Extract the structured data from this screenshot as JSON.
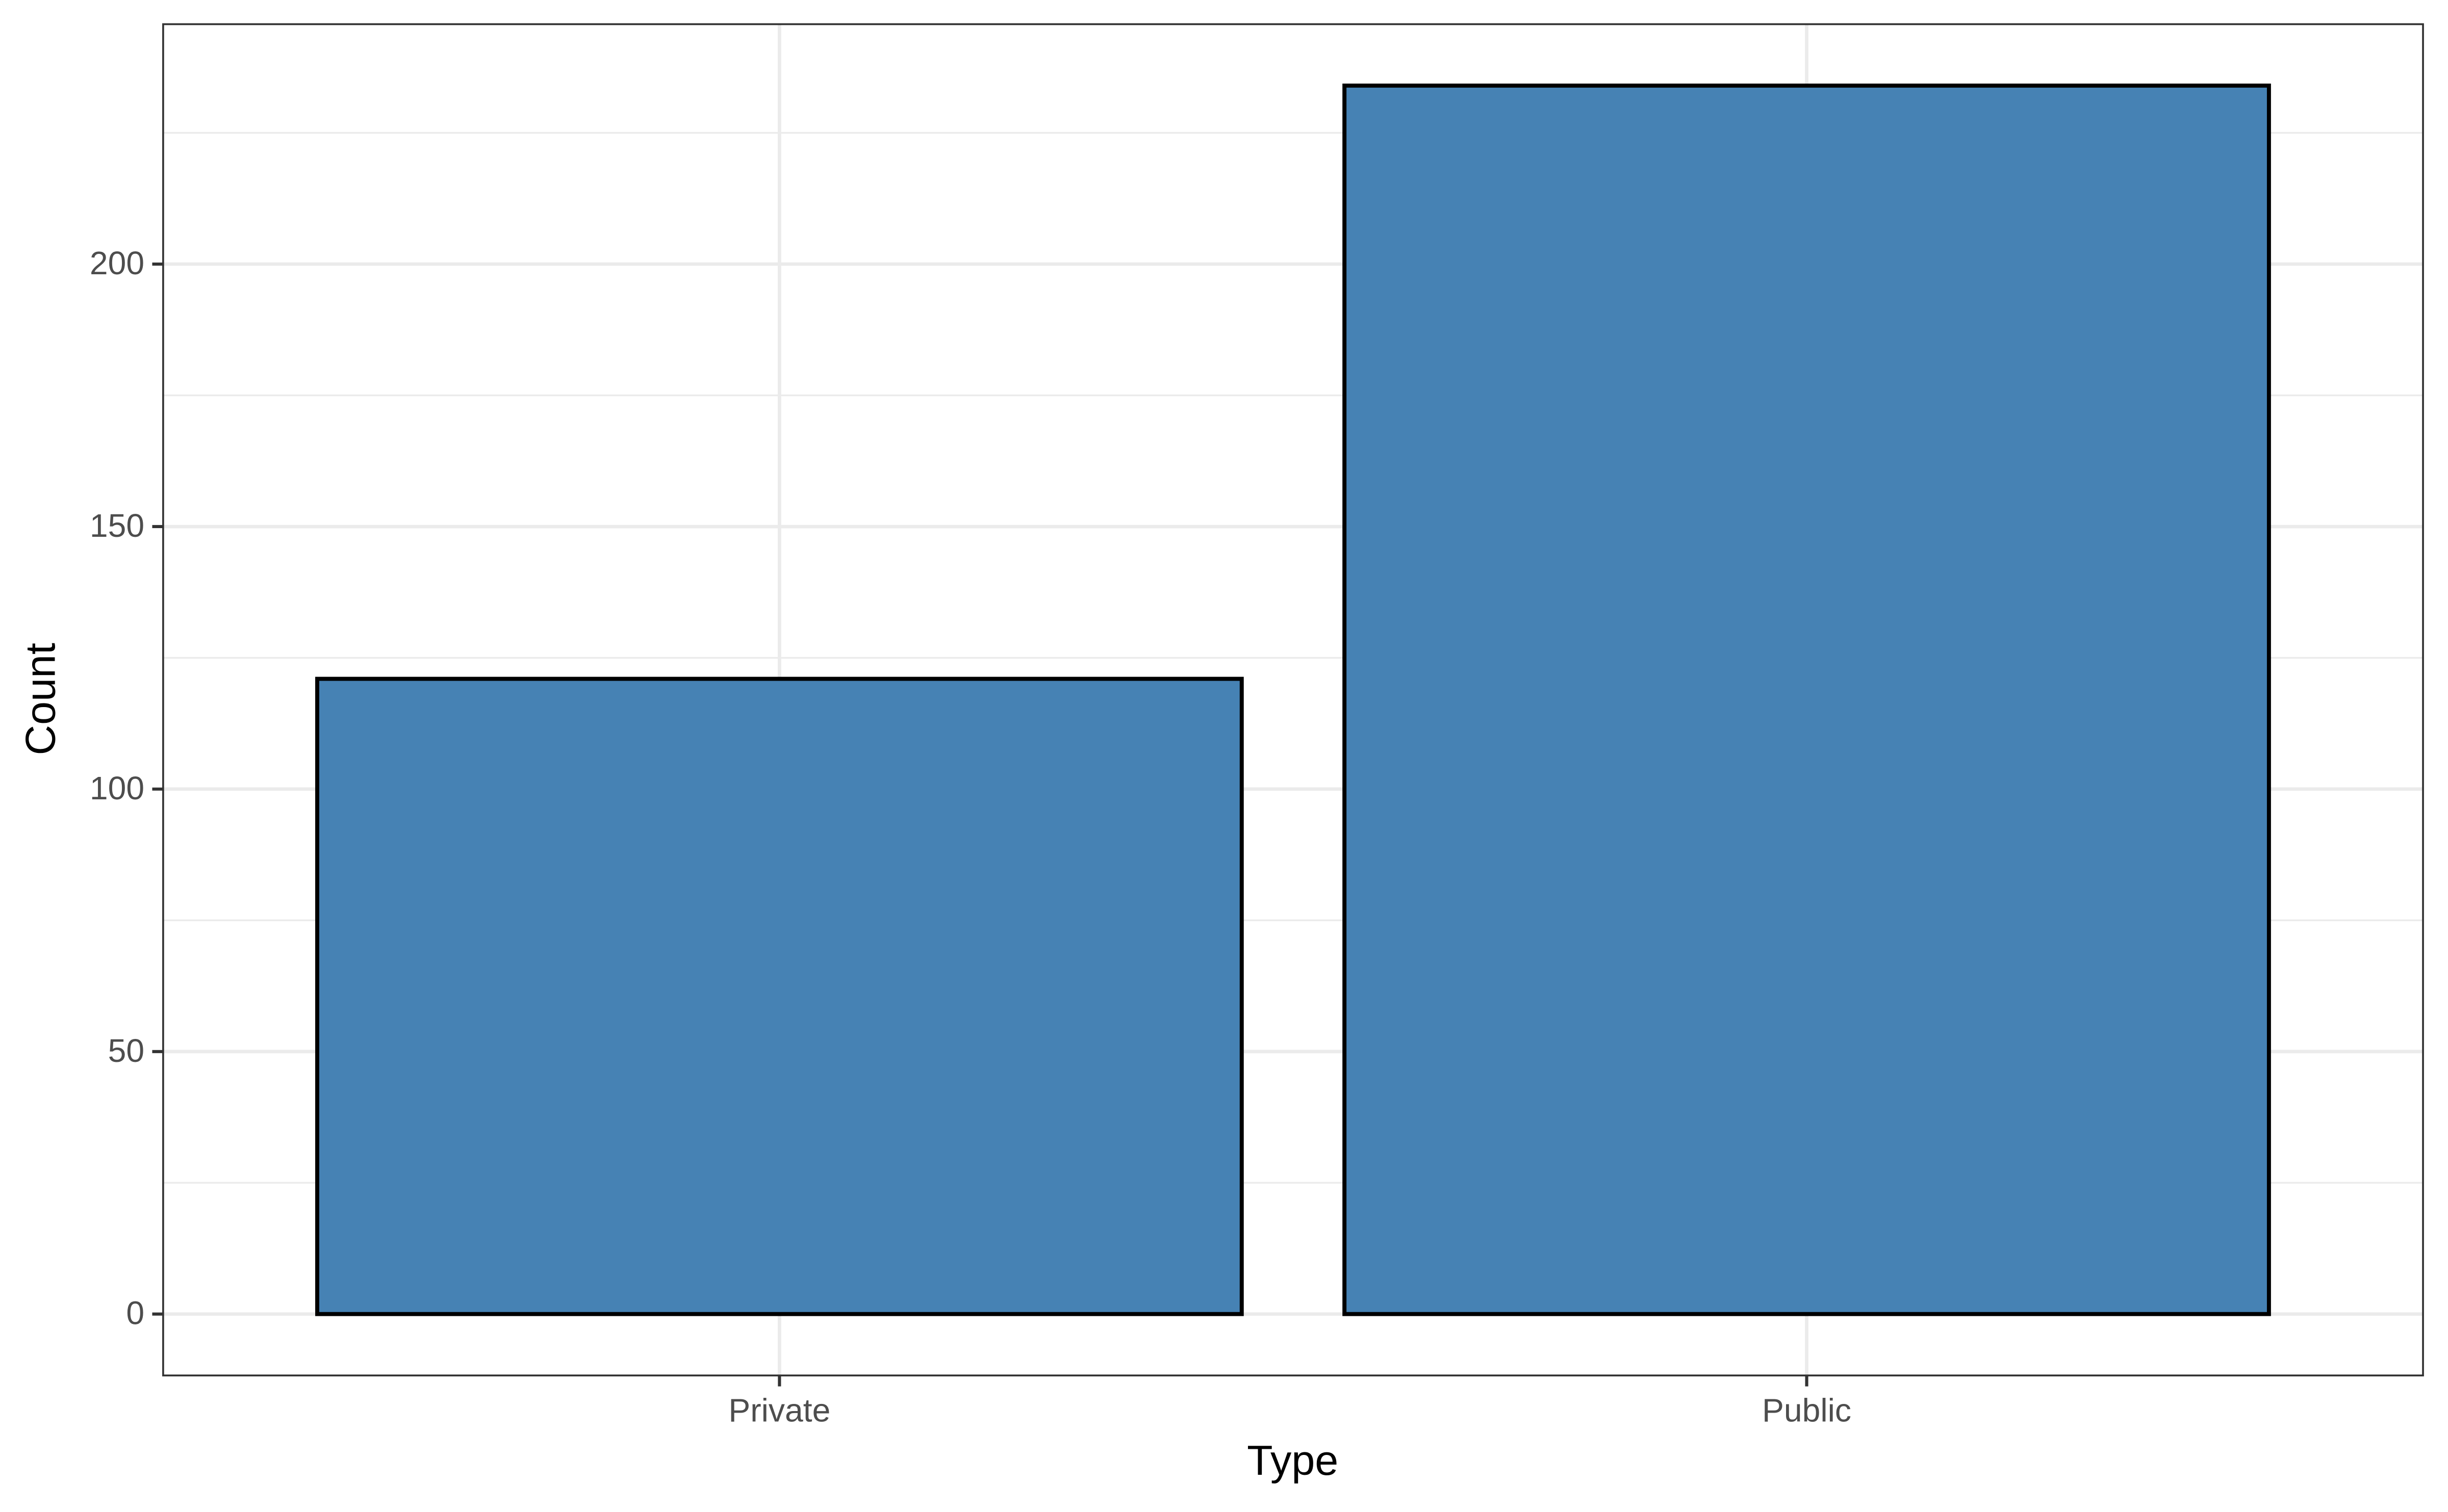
{
  "chart_data": {
    "type": "bar",
    "x_label": "Type",
    "y_label": "Count",
    "categories": [
      "Private",
      "Public"
    ],
    "values": [
      121,
      234
    ],
    "color": "#4682b4",
    "edge_color": "#000000",
    "ylim": [
      -11.7,
      245.7
    ],
    "yticks": [
      0,
      50,
      100,
      150,
      200
    ],
    "y_minor_grid": [
      25,
      75,
      125,
      175,
      225
    ],
    "grid": true
  }
}
